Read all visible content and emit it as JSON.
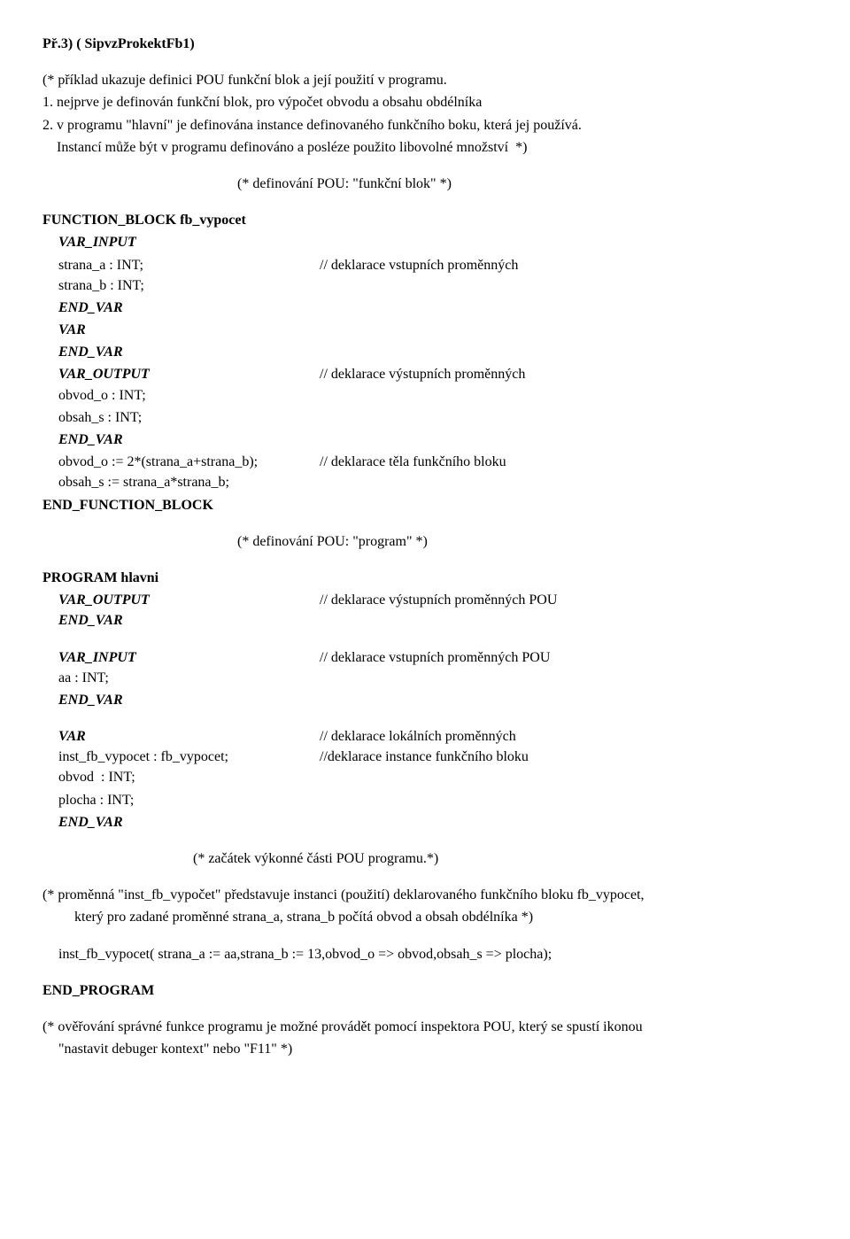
{
  "title": "Př.3)   ( SipvzProkektFb1)",
  "intro": [
    "(* příklad ukazuje definici POU funkční blok a její použití v programu.",
    "1. nejprve je definován funkční blok, pro výpočet obvodu a obsahu obdélníka",
    "2. v programu \"hlavní\" je definována instance definovaného funkčního boku, která  jej používá.",
    "    Instancí může být v programu definováno a posléze použito libovolné množství  *)"
  ],
  "c_def_fb": "(* definování POU: \"funkční blok\"  *)",
  "fb": {
    "head": "FUNCTION_BLOCK fb_vypocet",
    "var_input": "VAR_INPUT",
    "strana_a": "strana_a : INT;",
    "strana_a_c": "// deklarace vstupních proměnných",
    "strana_b": "strana_b : INT;",
    "end_var1": "END_VAR",
    "var": "VAR",
    "end_var2": "END_VAR",
    "var_output": "VAR_OUTPUT",
    "var_output_c": "// deklarace výstupních proměnných",
    "obvod_o": "obvod_o : INT;",
    "obsah_s": "obsah_s : INT;",
    "end_var3": "END_VAR",
    "body1": "obvod_o := 2*(strana_a+strana_b);",
    "body1_c": "// deklarace těla funkčního bloku",
    "body2": "obsah_s := strana_a*strana_b;",
    "end": "END_FUNCTION_BLOCK"
  },
  "c_def_prog": "(* definování POU: \"program\"  *)",
  "prog": {
    "head": "PROGRAM hlavni",
    "var_output": "VAR_OUTPUT",
    "var_output_c": "// deklarace výstupních proměnných POU",
    "end_var1": "END_VAR",
    "var_input": "VAR_INPUT",
    "var_input_c": "// deklarace vstupních proměnných POU",
    "aa": "aa : INT;",
    "end_var2": "END_VAR",
    "var": "VAR",
    "var_c": "// deklarace lokálních proměnných",
    "inst": "inst_fb_vypocet : fb_vypocet;",
    "inst_c": "//deklarace instance funkčního bloku",
    "obvod": "obvod  : INT;",
    "plocha": "plocha : INT;",
    "end_var3": "END_VAR"
  },
  "c_exec": "(* začátek výkonné části POU programu.*)",
  "note1a": "(*   proměnná \"inst_fb_vypočet\" představuje instanci (použití) deklarovaného funkčního bloku fb_vypocet,",
  "note1b": "který pro zadané proměnné strana_a, strana_b počítá obvod a obsah obdélníka *)",
  "call": "inst_fb_vypocet( strana_a := aa,strana_b := 13,obvod_o => obvod,obsah_s => plocha);",
  "end_prog": "END_PROGRAM",
  "note2a": "(* ověřování správné funkce programu je možné provádět pomocí inspektora POU, který se spustí ikonou",
  "note2b": "\"nastavit debuger kontext\" nebo \"F11\"   *)"
}
